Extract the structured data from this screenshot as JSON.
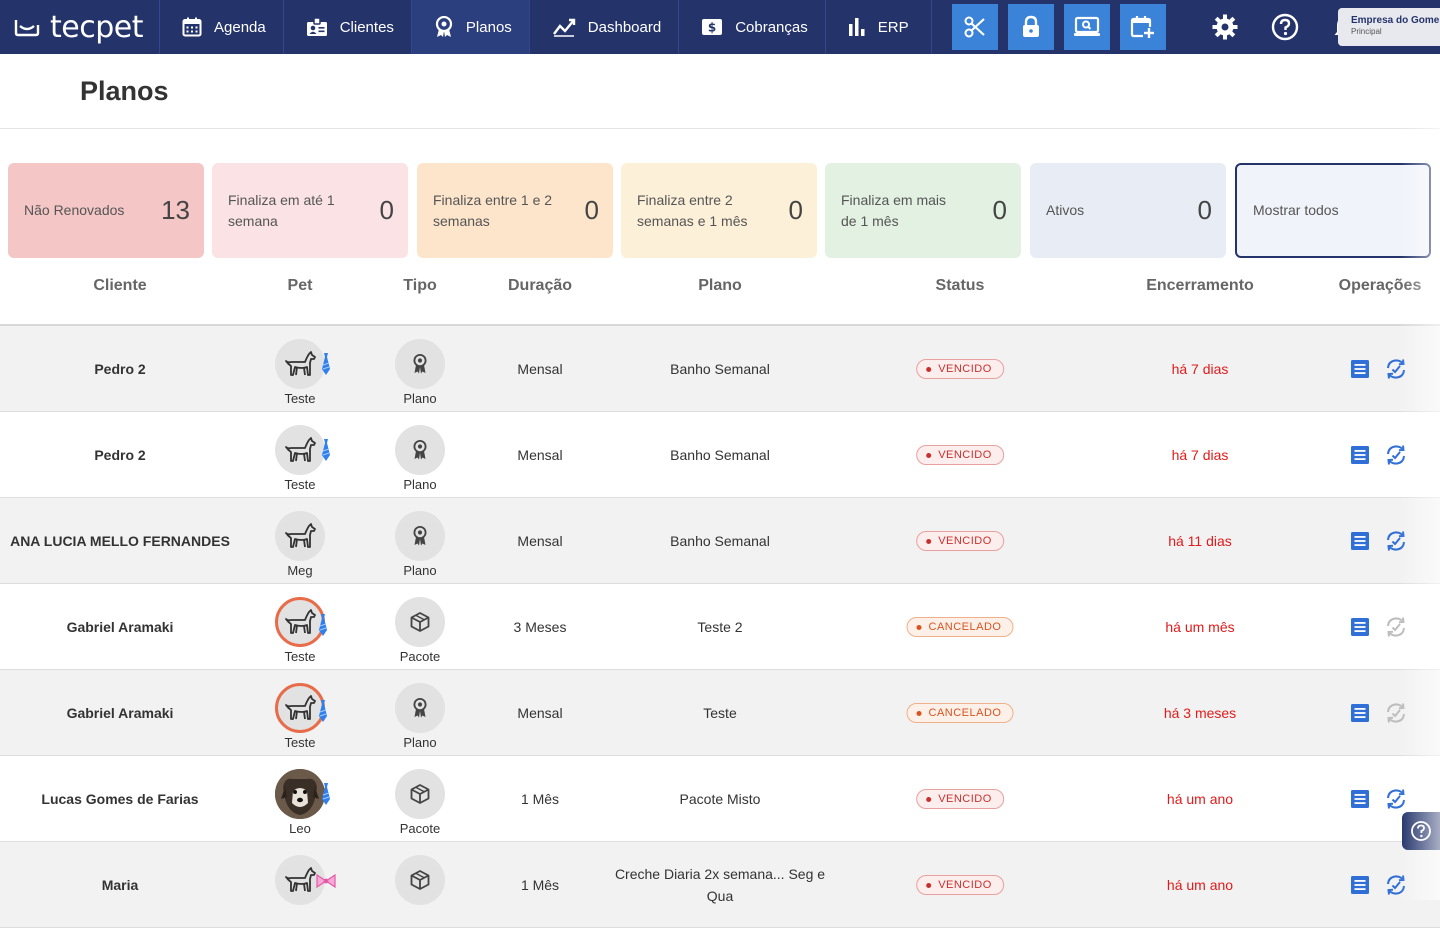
{
  "brand": {
    "logo_text": "tecpet"
  },
  "nav": {
    "items": [
      {
        "label": "Agenda",
        "icon": "calendar-icon"
      },
      {
        "label": "Clientes",
        "icon": "contact-card-icon"
      },
      {
        "label": "Planos",
        "icon": "award-icon",
        "active": true
      },
      {
        "label": "Dashboard",
        "icon": "trend-chart-icon"
      },
      {
        "label": "Cobranças",
        "icon": "dollar-bill-icon"
      },
      {
        "label": "ERP",
        "icon": "bar-chart-icon"
      }
    ],
    "tools": [
      "scissors-icon",
      "lock-icon",
      "monitor-search-icon",
      "calendar-add-icon"
    ],
    "icons": [
      "gear-icon",
      "help-circle-icon",
      "bell-icon"
    ],
    "company": {
      "name": "Empresa do Gomes",
      "subtitle": "Principal"
    }
  },
  "page": {
    "title": "Planos"
  },
  "cards": [
    {
      "label": "Não Renovados",
      "count": "13",
      "bg": "#f5c6c6"
    },
    {
      "label": "Finaliza em até 1 semana",
      "count": "0",
      "bg": "#fbe3e5"
    },
    {
      "label": "Finaliza entre 1 e 2 semanas",
      "count": "0",
      "bg": "#fde5cc"
    },
    {
      "label": "Finaliza entre 2 semanas e 1 mês",
      "count": "0",
      "bg": "#fdf0d9"
    },
    {
      "label": "Finaliza em mais de 1 mês",
      "count": "0",
      "bg": "#e2f1e2"
    },
    {
      "label": "Ativos",
      "count": "0",
      "bg": "#e8edf5"
    },
    {
      "label": "Mostrar todos",
      "count": "",
      "bg": "#f0f3fa"
    }
  ],
  "table": {
    "headers": [
      "Cliente",
      "Pet",
      "Tipo",
      "Duração",
      "Plano",
      "Status",
      "Encerramento",
      "Operações"
    ],
    "rows": [
      {
        "client": "Pedro 2",
        "pet": "Teste",
        "pet_style": "grey",
        "pet_tag": "blue",
        "type": "Plano",
        "type_icon": "award-icon",
        "duration": "Mensal",
        "plan": "Banho Semanal",
        "status": "VENCIDO",
        "status_kind": "expired",
        "end": "há 7 dias",
        "renew_enabled": true
      },
      {
        "client": "Pedro 2",
        "pet": "Teste",
        "pet_style": "grey",
        "pet_tag": "blue",
        "type": "Plano",
        "type_icon": "award-icon",
        "duration": "Mensal",
        "plan": "Banho Semanal",
        "status": "VENCIDO",
        "status_kind": "expired",
        "end": "há 7 dias",
        "renew_enabled": true
      },
      {
        "client": "ANA LUCIA MELLO FERNANDES",
        "pet": "Meg",
        "pet_style": "grey",
        "pet_tag": "none",
        "type": "Plano",
        "type_icon": "award-icon",
        "duration": "Mensal",
        "plan": "Banho Semanal",
        "status": "VENCIDO",
        "status_kind": "expired",
        "end": "há 11 dias",
        "renew_enabled": true
      },
      {
        "client": "Gabriel Aramaki",
        "pet": "Teste",
        "pet_style": "ring",
        "pet_tag": "blue",
        "type": "Pacote",
        "type_icon": "box-icon",
        "duration": "3 Meses",
        "plan": "Teste 2",
        "status": "CANCELADO",
        "status_kind": "cancelled",
        "end": "há um mês",
        "renew_enabled": false
      },
      {
        "client": "Gabriel Aramaki",
        "pet": "Teste",
        "pet_style": "ring",
        "pet_tag": "blue",
        "type": "Plano",
        "type_icon": "award-icon",
        "duration": "Mensal",
        "plan": "Teste",
        "status": "CANCELADO",
        "status_kind": "cancelled",
        "end": "há 3 meses",
        "renew_enabled": false
      },
      {
        "client": "Lucas Gomes de Farias",
        "pet": "Leo",
        "pet_style": "photo",
        "pet_tag": "blue",
        "type": "Pacote",
        "type_icon": "box-icon",
        "duration": "1 Mês",
        "plan": "Pacote Misto",
        "status": "VENCIDO",
        "status_kind": "expired",
        "end": "há um ano",
        "renew_enabled": true
      },
      {
        "client": "Maria",
        "pet": "",
        "pet_style": "grey",
        "pet_tag": "pink",
        "type": "",
        "type_icon": "box-icon",
        "duration": "1 Mês",
        "plan": "Creche Diaria 2x semana... Seg e Qua",
        "status": "VENCIDO",
        "status_kind": "expired",
        "end": "há um ano",
        "renew_enabled": true
      }
    ]
  }
}
